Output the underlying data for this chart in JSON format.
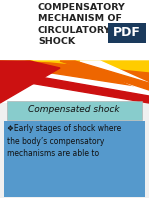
{
  "title_text": "COMPENSATORY\nMECHANISM OF\nCIRCULATORY\nSHOCK",
  "subtitle_box_text": "Compensated shock",
  "body_text": "❖Early stages of shock where\nthe body’s compensatory\nmechanisms are able to",
  "bg_color": "#f0f0f0",
  "title_color": "#222222",
  "subtitle_bg": "#88cccc",
  "subtitle_text_color": "#111111",
  "body_bg": "#5599cc",
  "body_text_color": "#111111",
  "pdf_badge_bg": "#1a3a5c",
  "pdf_badge_text": "PDF",
  "wave_white": "#ffffff",
  "wave_red": "#cc1111",
  "wave_orange": "#ee6600",
  "wave_yellow": "#ffcc00",
  "wave_lightyellow": "#ffdd88"
}
